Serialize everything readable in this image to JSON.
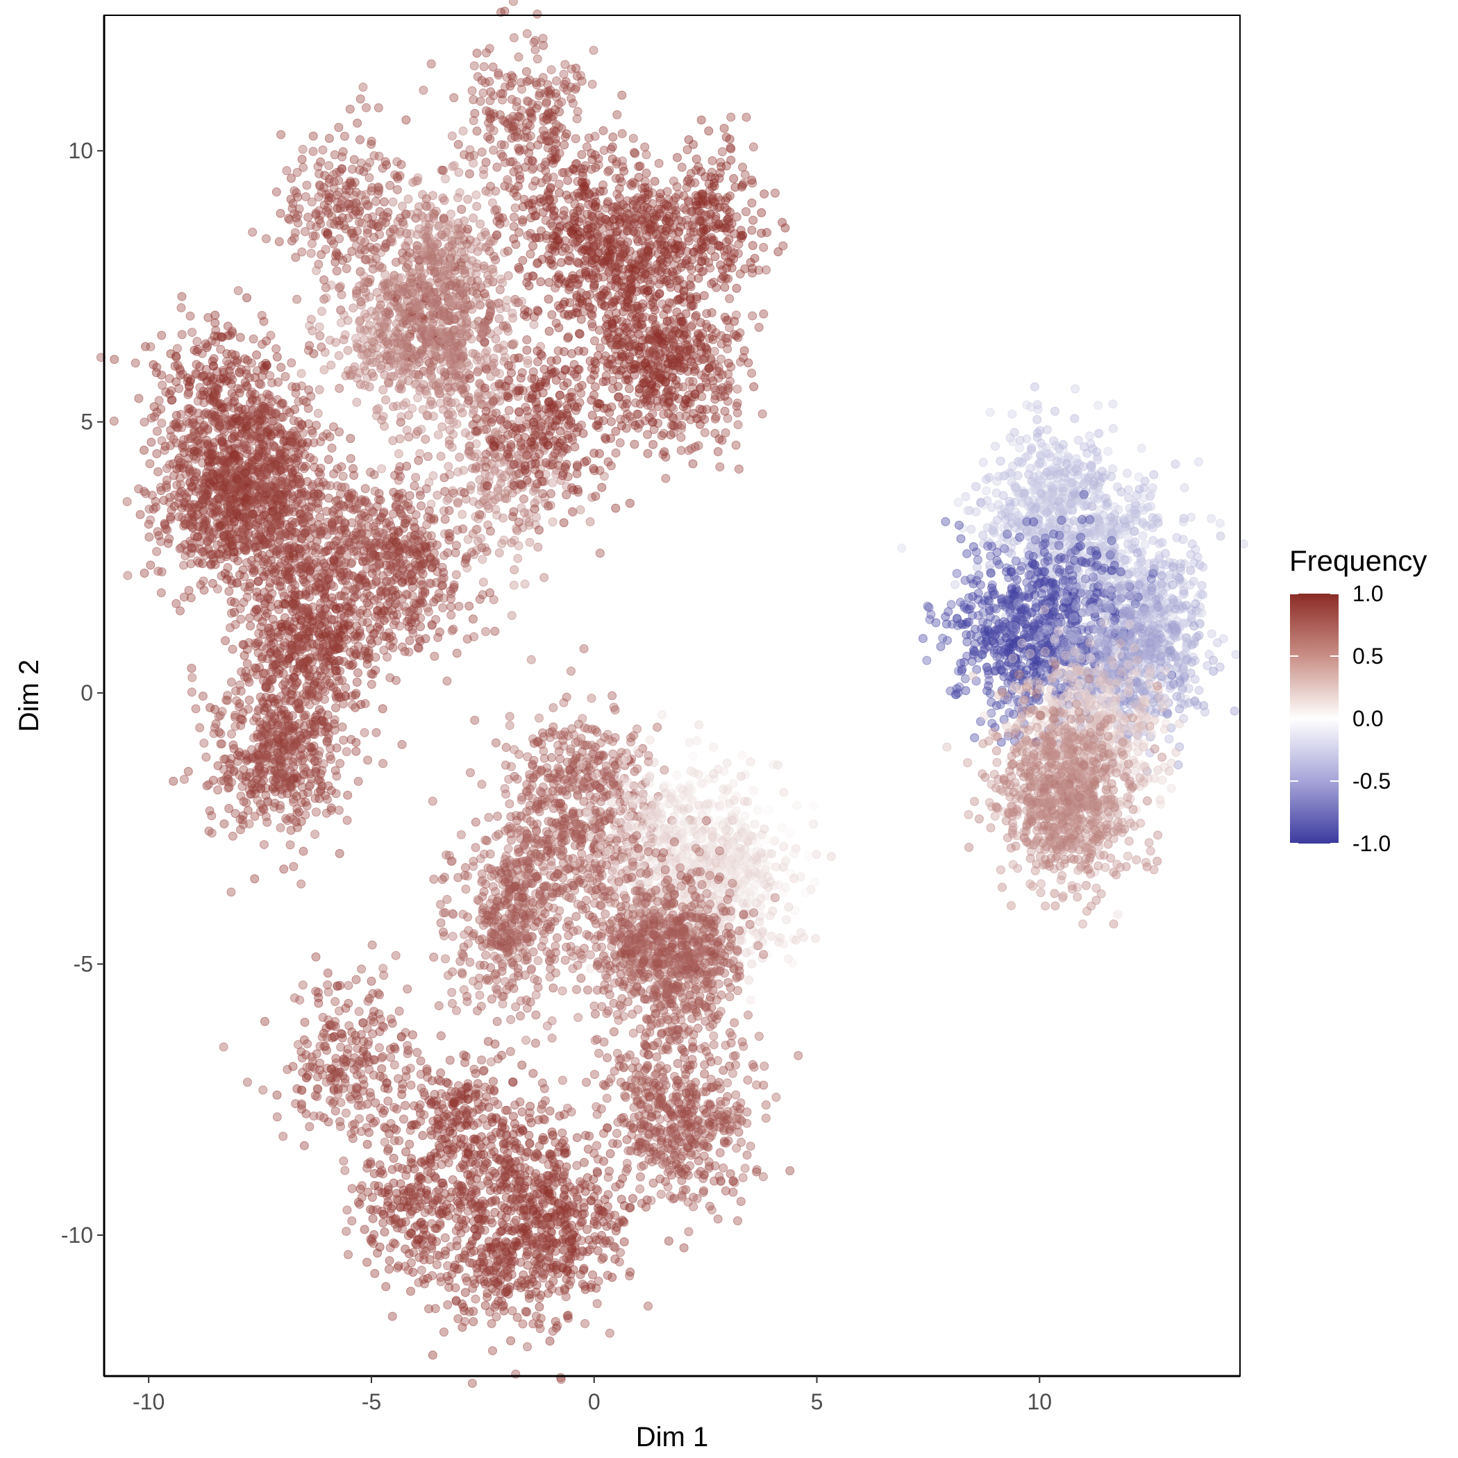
{
  "chart_data": {
    "type": "scatter",
    "title": "",
    "xlabel": "Dim 1",
    "ylabel": "Dim 2",
    "xlim": [
      -11,
      14.5
    ],
    "ylim": [
      -12.6,
      12.5
    ],
    "x_ticks": [
      -10,
      -5,
      0,
      5,
      10
    ],
    "y_ticks": [
      -10,
      -5,
      0,
      5,
      10
    ],
    "x_tick_labels": [
      "-10",
      "-5",
      "0",
      "5",
      "10"
    ],
    "y_tick_labels": [
      "-10",
      "-5",
      "0",
      "5",
      "10"
    ],
    "grid": false,
    "point_alpha": 0.4,
    "legend": {
      "title": "Frequency",
      "placement": "right",
      "type": "colorbar",
      "range": [
        -1.0,
        1.0
      ],
      "ticks": [
        1.0,
        0.5,
        0.0,
        -0.5,
        -1.0
      ],
      "tick_labels": [
        "1.0",
        "0.5",
        "0.0",
        "-0.5",
        "-1.0"
      ],
      "colors": {
        "high": "#8b2b25",
        "mid": "#ffffff",
        "low": "#3b3a9e"
      }
    },
    "clusters": [
      {
        "x": [
          -5.5,
          -1.5,
          1.0,
          2.0,
          -3.5,
          -7.5,
          -8.8
        ],
        "y": [
          9.0,
          10.5,
          8.5,
          6.0,
          7.0,
          4.5,
          3.5
        ],
        "value": 0.85
      },
      {
        "x": [
          -3.5,
          -3.0,
          -2.0,
          -4.5
        ],
        "y": [
          8.0,
          6.0,
          4.0,
          6.5
        ],
        "value": 0.6
      },
      {
        "x": [
          -0.5,
          0.5,
          1.5,
          2.5,
          -1.0
        ],
        "y": [
          8.5,
          7.5,
          6.0,
          8.8,
          5.0
        ],
        "value": 0.95
      },
      {
        "x": [
          -8.5,
          -8.0,
          -7.5
        ],
        "y": [
          5.5,
          4.0,
          3.2
        ],
        "value": 0.9
      },
      {
        "x": [
          -6.5,
          -5.0,
          -4.0
        ],
        "y": [
          3.0,
          2.6,
          2.4
        ],
        "value": 0.85
      },
      {
        "x": [
          -6.5,
          -6.2
        ],
        "y": [
          1.0,
          0.9
        ],
        "value": 0.9
      },
      {
        "x": [
          -7.0,
          -7.2
        ],
        "y": [
          -1.0,
          -1.3
        ],
        "value": 0.85
      },
      {
        "x": [
          -0.5,
          0.0,
          -1.5,
          -2.0
        ],
        "y": [
          -1.5,
          -2.5,
          -3.5,
          -4.5
        ],
        "value": 0.75
      },
      {
        "x": [
          1.5,
          2.5,
          3.2,
          2.0
        ],
        "y": [
          -2.6,
          -3.0,
          -3.5,
          -4.2
        ],
        "value": 0.15
      },
      {
        "x": [
          1.0,
          1.8,
          2.0
        ],
        "y": [
          -4.5,
          -5.0,
          -4.8
        ],
        "value": 0.75
      },
      {
        "x": [
          -1.5,
          -3.0,
          -0.5,
          -2.0,
          -4.0
        ],
        "y": [
          -9.0,
          -8.0,
          -10.0,
          -10.5,
          -9.5
        ],
        "value": 0.9
      },
      {
        "x": [
          1.5,
          2.3
        ],
        "y": [
          -7.5,
          -8.0
        ],
        "value": 0.8
      },
      {
        "x": [
          -5.6
        ],
        "y": [
          -6.8
        ],
        "value": 0.85
      },
      {
        "x": [
          10.5,
          11.5,
          12.5,
          10.0
        ],
        "y": [
          3.2,
          2.7,
          1.5,
          3.5
        ],
        "value": -0.3
      },
      {
        "x": [
          9.2,
          9.8,
          10.8
        ],
        "y": [
          1.3,
          0.8,
          1.6
        ],
        "value": -0.9
      },
      {
        "x": [
          11.5,
          12.5
        ],
        "y": [
          0.5,
          0.8
        ],
        "value": -0.45
      },
      {
        "x": [
          10.8,
          11.3
        ],
        "y": [
          -0.5,
          -1.0
        ],
        "value": 0.25
      },
      {
        "x": [
          10.5,
          10.8,
          10.2
        ],
        "y": [
          -1.8,
          -2.4,
          -1.6
        ],
        "value": 0.55
      }
    ]
  }
}
